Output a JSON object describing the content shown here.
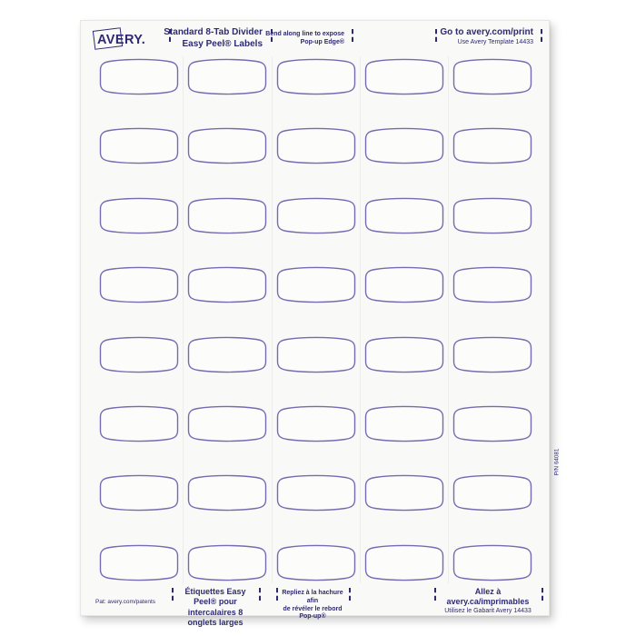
{
  "page": {
    "background": "#ffffff"
  },
  "sheet": {
    "background": "#f9f9f8",
    "label_outline_color": "#746cb1",
    "label_fill_color": "#fcfcfb",
    "text_color": "#2e2a72",
    "pn_vertical": "P/N 64081",
    "header": {
      "logo_text": "AVERY.",
      "left_title_line1": "Standard 8-Tab Divider",
      "left_title_line2": "Easy Peel® Labels",
      "center_note_line1": "Bend along line to expose",
      "center_note_line2": "Pop-up Edge®",
      "right_title_line1": "Go to avery.com/print",
      "right_title_line2": "Use Avery Template 14433"
    },
    "footer": {
      "patents": "Pat: avery.com/patents",
      "left_title_line1": "Étiquettes Easy Peel® pour",
      "left_title_line2": "intercalaires 8 onglets larges",
      "center_note_line1": "Repliez à la hachure afin",
      "center_note_line2": "de révéler le rebord Pop-up®",
      "right_title_line1": "Allez à avery.ca/imprimables",
      "right_title_line2": "Utilisez le Gabarit Avery 14433"
    },
    "label_grid": {
      "rows": 8,
      "columns": 5,
      "total_labels": 40
    }
  }
}
